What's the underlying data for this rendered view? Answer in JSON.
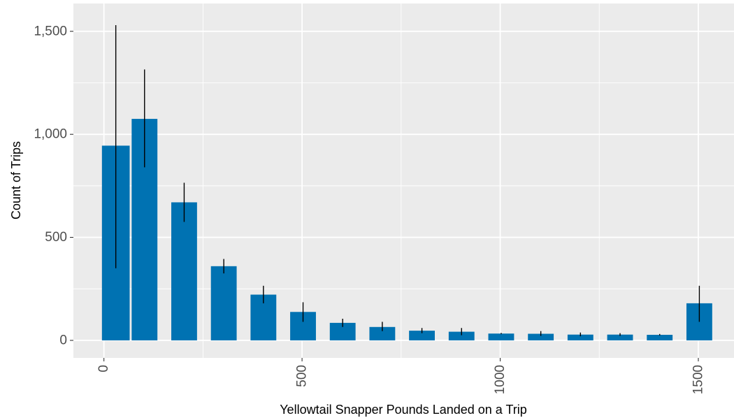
{
  "chart_data": {
    "type": "bar",
    "title": "",
    "xlabel": "Yellowtail Snapper Pounds Landed on a Trip",
    "ylabel": "Count of Trips",
    "xlim": [
      -77,
      1590
    ],
    "ylim": [
      -85,
      1635
    ],
    "x_ticks": [
      0,
      500,
      1000,
      1500
    ],
    "x_tick_labels": [
      "0",
      "500",
      "1000",
      "1500"
    ],
    "y_ticks": [
      0,
      500,
      1000,
      1500
    ],
    "y_tick_labels": [
      "0",
      "500",
      "1,000",
      "1,500"
    ],
    "grid": true,
    "legend": "none",
    "bar_color": "#0072b2",
    "error_bar_color": "#000000",
    "panel_background": "#ebebeb",
    "grid_color": "#ffffff",
    "bars": [
      {
        "x_start": -5,
        "x_end": 65,
        "value": 945,
        "err_low": 350,
        "err_high": 1530
      },
      {
        "x_start": 70,
        "x_end": 135,
        "value": 1075,
        "err_low": 840,
        "err_high": 1315
      },
      {
        "x_start": 170,
        "x_end": 235,
        "value": 670,
        "err_low": 575,
        "err_high": 765
      },
      {
        "x_start": 270,
        "x_end": 335,
        "value": 360,
        "err_low": 325,
        "err_high": 395
      },
      {
        "x_start": 370,
        "x_end": 435,
        "value": 222,
        "err_low": 180,
        "err_high": 265
      },
      {
        "x_start": 470,
        "x_end": 535,
        "value": 138,
        "err_low": 90,
        "err_high": 185
      },
      {
        "x_start": 570,
        "x_end": 635,
        "value": 85,
        "err_low": 65,
        "err_high": 105
      },
      {
        "x_start": 670,
        "x_end": 735,
        "value": 65,
        "err_low": 45,
        "err_high": 90
      },
      {
        "x_start": 770,
        "x_end": 835,
        "value": 47,
        "err_low": 35,
        "err_high": 60
      },
      {
        "x_start": 870,
        "x_end": 935,
        "value": 42,
        "err_low": 25,
        "err_high": 60
      },
      {
        "x_start": 970,
        "x_end": 1035,
        "value": 33,
        "err_low": 30,
        "err_high": 36
      },
      {
        "x_start": 1070,
        "x_end": 1135,
        "value": 32,
        "err_low": 22,
        "err_high": 45
      },
      {
        "x_start": 1170,
        "x_end": 1235,
        "value": 28,
        "err_low": 20,
        "err_high": 38
      },
      {
        "x_start": 1270,
        "x_end": 1335,
        "value": 28,
        "err_low": 22,
        "err_high": 35
      },
      {
        "x_start": 1370,
        "x_end": 1435,
        "value": 27,
        "err_low": 24,
        "err_high": 31
      },
      {
        "x_start": 1470,
        "x_end": 1535,
        "value": 180,
        "err_low": 90,
        "err_high": 265
      }
    ]
  }
}
